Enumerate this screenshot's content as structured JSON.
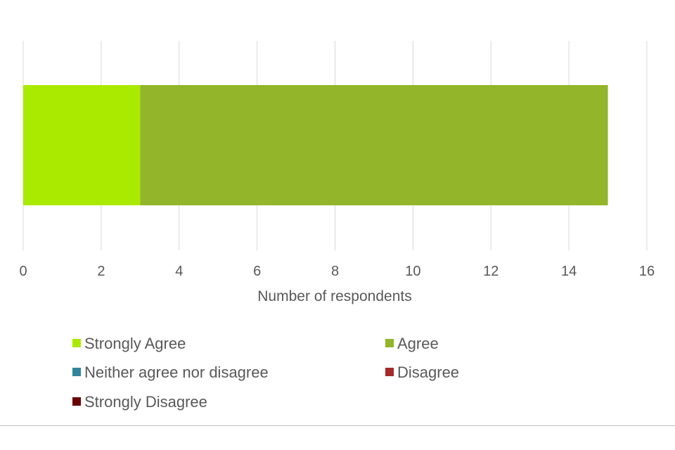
{
  "chart_data": {
    "type": "bar",
    "orientation": "horizontal",
    "stacked": true,
    "categories": [
      ""
    ],
    "series": [
      {
        "name": "Strongly Agree",
        "values": [
          3
        ],
        "color": "#aaea00"
      },
      {
        "name": "Agree",
        "values": [
          12
        ],
        "color": "#92b52a"
      },
      {
        "name": "Neither agree nor disagree",
        "values": [
          0
        ],
        "color": "#31859b"
      },
      {
        "name": "Disagree",
        "values": [
          0
        ],
        "color": "#a52a2a"
      },
      {
        "name": "Strongly Disagree",
        "values": [
          0
        ],
        "color": "#6b0000"
      }
    ],
    "xlabel": "Number of respondents",
    "xlim": [
      0,
      16
    ],
    "xticks": [
      "0",
      "2",
      "4",
      "6",
      "8",
      "10",
      "12",
      "14",
      "16"
    ],
    "grid": true,
    "legend_position": "bottom"
  }
}
